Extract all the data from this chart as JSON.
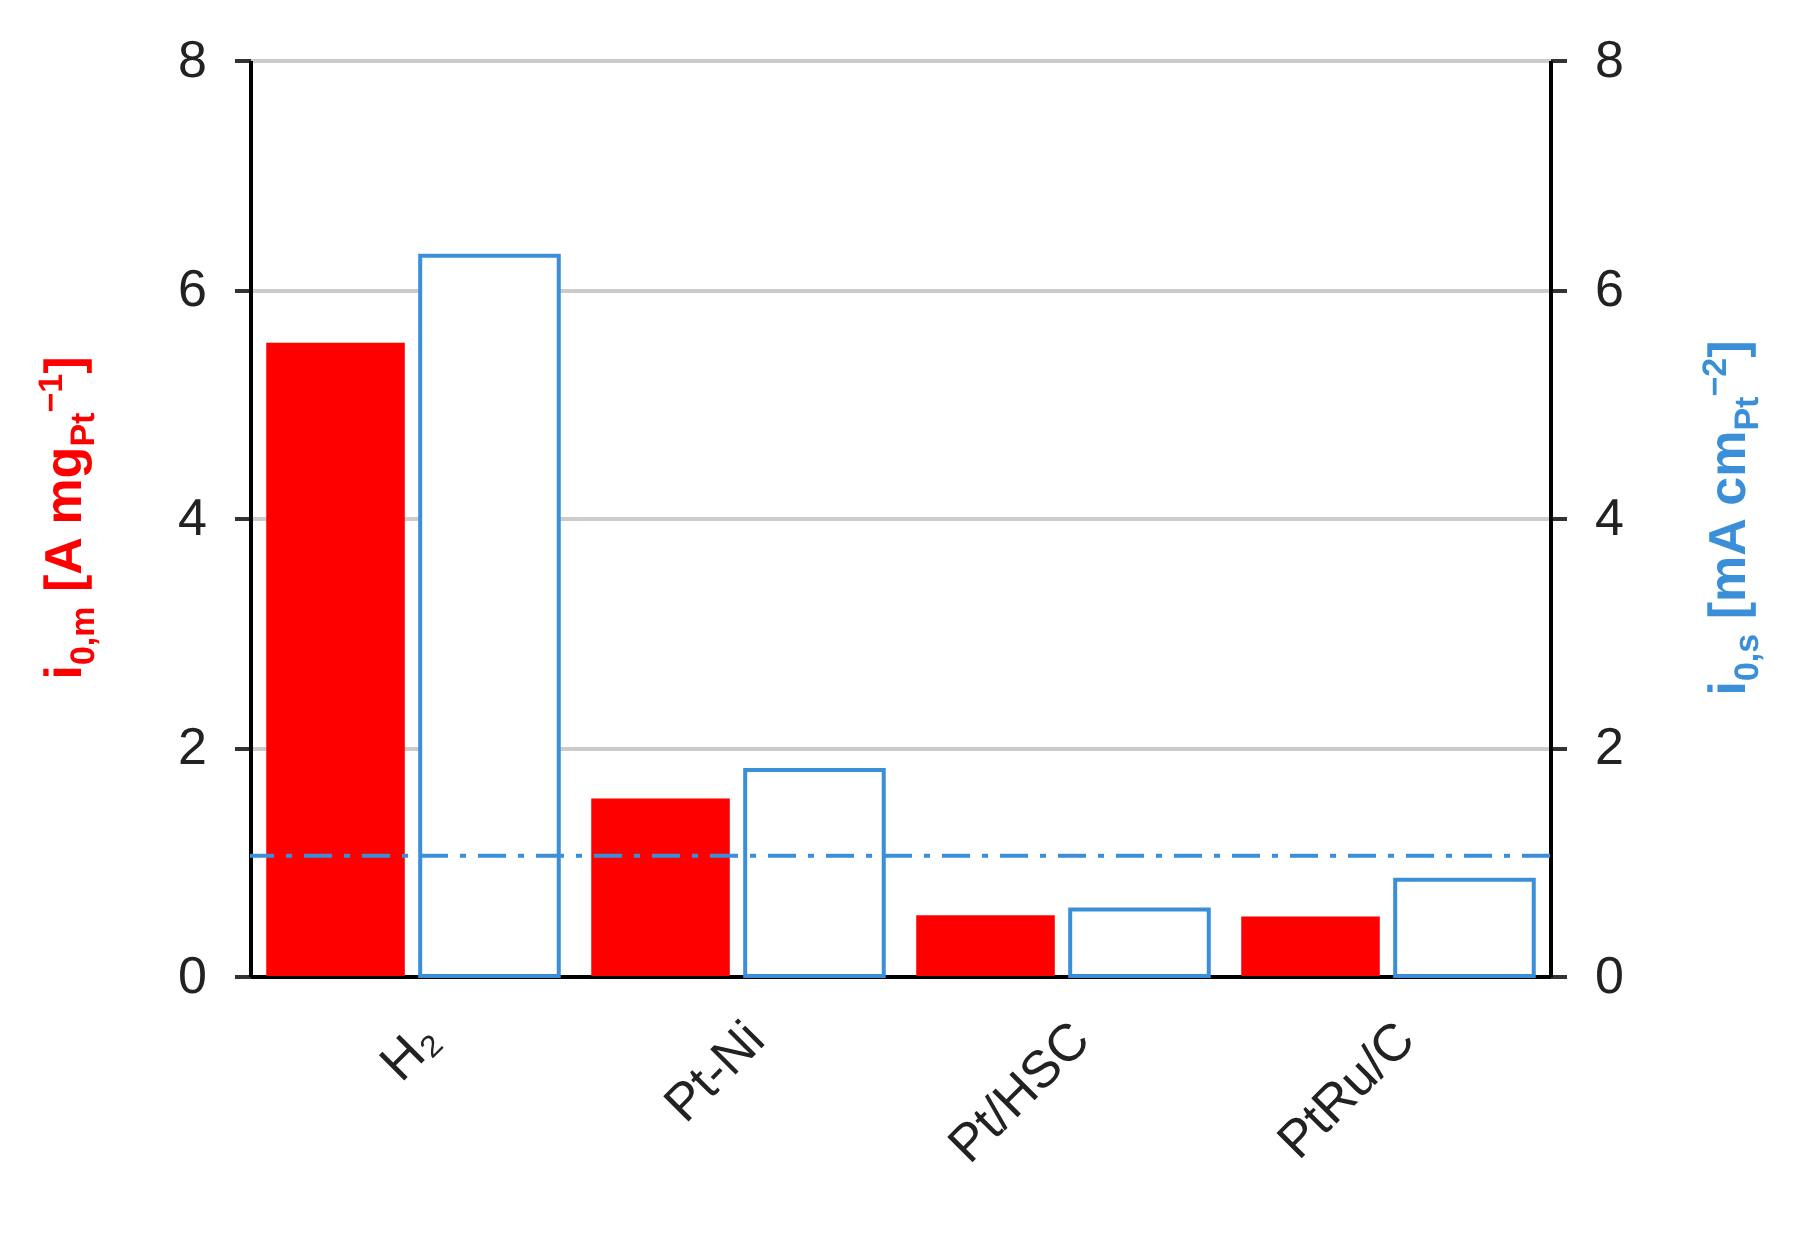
{
  "chart_data": {
    "type": "bar",
    "ylabel": "i$_{0,m}$ [A mg$_{Pt}$$^{−1}$]",
    "y2label": "i$_{0,s}$ [mA cm$_{Pt}$$^{−2}$]",
    "categories": [
      "H₂",
      "Pt-Ni",
      "Pt/HSC",
      "PtRu/C"
    ],
    "series": [
      {
        "color": "#ff0000",
        "values": [
          5.53,
          1.55,
          0.53,
          0.52
        ]
      },
      {
        "color": "#3a8fd8",
        "axis": "y2",
        "values": [
          6.29,
          1.8,
          0.58,
          0.84
        ]
      }
    ],
    "ylim": [
      0,
      8
    ],
    "yticks": [
      0,
      2,
      4,
      6,
      8
    ],
    "y2lim": [
      0,
      8
    ],
    "y2ticks": [
      0,
      2,
      4,
      6,
      8
    ],
    "ref_lines": [
      {
        "axis": "y2",
        "value": 1.05,
        "color": "#3a8fd8",
        "line_style": "dashed"
      }
    ],
    "grid": "y"
  }
}
